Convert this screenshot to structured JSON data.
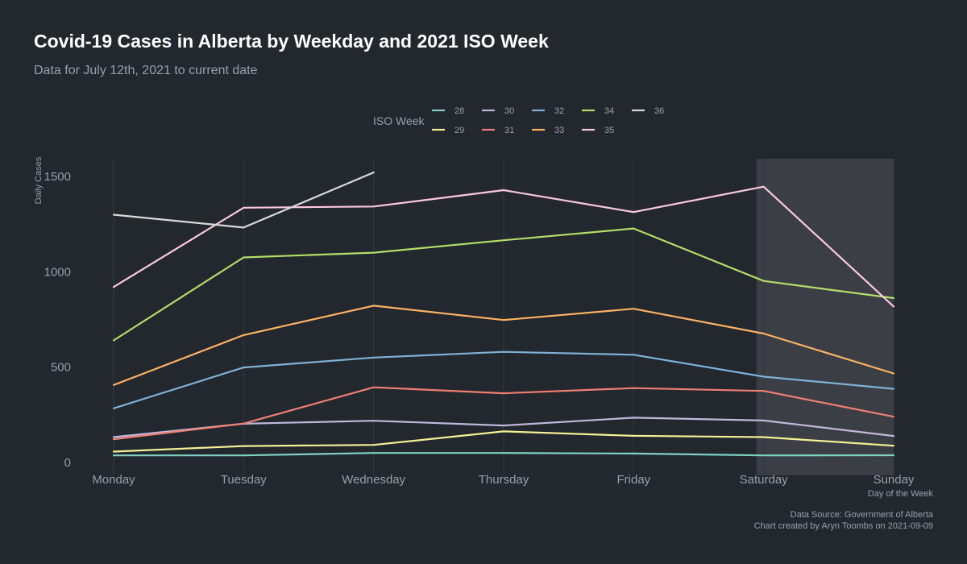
{
  "chart_data": {
    "type": "line",
    "title": "Covid-19 Cases in Alberta by Weekday and 2021 ISO Week",
    "subtitle": "Data for July 12th, 2021 to current date",
    "xlabel": "Day of the Week",
    "ylabel": "Daily Cases",
    "legend_title": "ISO Week",
    "categories": [
      "Monday",
      "Tuesday",
      "Wednesday",
      "Thursday",
      "Friday",
      "Saturday",
      "Sunday"
    ],
    "y_ticks": [
      0,
      500,
      1000,
      1500
    ],
    "ylim": [
      0,
      1600
    ],
    "grid": true,
    "legend_position": "top",
    "highlight_band": {
      "from": "Saturday",
      "to": "Sunday"
    },
    "series": [
      {
        "name": "28",
        "color": "#7fd1c4",
        "values": [
          37,
          37,
          50,
          50,
          47,
          37,
          38
        ]
      },
      {
        "name": "29",
        "color": "#f3f095",
        "values": [
          57,
          86,
          92,
          163,
          140,
          133,
          88
        ]
      },
      {
        "name": "30",
        "color": "#bfb8dc",
        "values": [
          133,
          203,
          219,
          194,
          235,
          220,
          139
        ]
      },
      {
        "name": "31",
        "color": "#f07f72",
        "values": [
          122,
          204,
          394,
          363,
          390,
          375,
          240
        ]
      },
      {
        "name": "32",
        "color": "#7fb1d6",
        "values": [
          284,
          498,
          550,
          580,
          565,
          450,
          386
        ]
      },
      {
        "name": "33",
        "color": "#fcb262",
        "values": [
          406,
          668,
          822,
          747,
          806,
          676,
          467
        ]
      },
      {
        "name": "34",
        "color": "#b2de68",
        "values": [
          640,
          1075,
          1100,
          1165,
          1227,
          952,
          862
        ]
      },
      {
        "name": "35",
        "color": "#fbc8df",
        "values": [
          920,
          1336,
          1342,
          1428,
          1313,
          1446,
          818
        ]
      },
      {
        "name": "36",
        "color": "#d9d9d9",
        "values": [
          1299,
          1232,
          1521,
          null,
          null,
          null,
          null
        ]
      }
    ],
    "caption": [
      "Data Source: Government of Alberta",
      "Chart created by Aryn Toombs on 2021-09-09"
    ]
  }
}
